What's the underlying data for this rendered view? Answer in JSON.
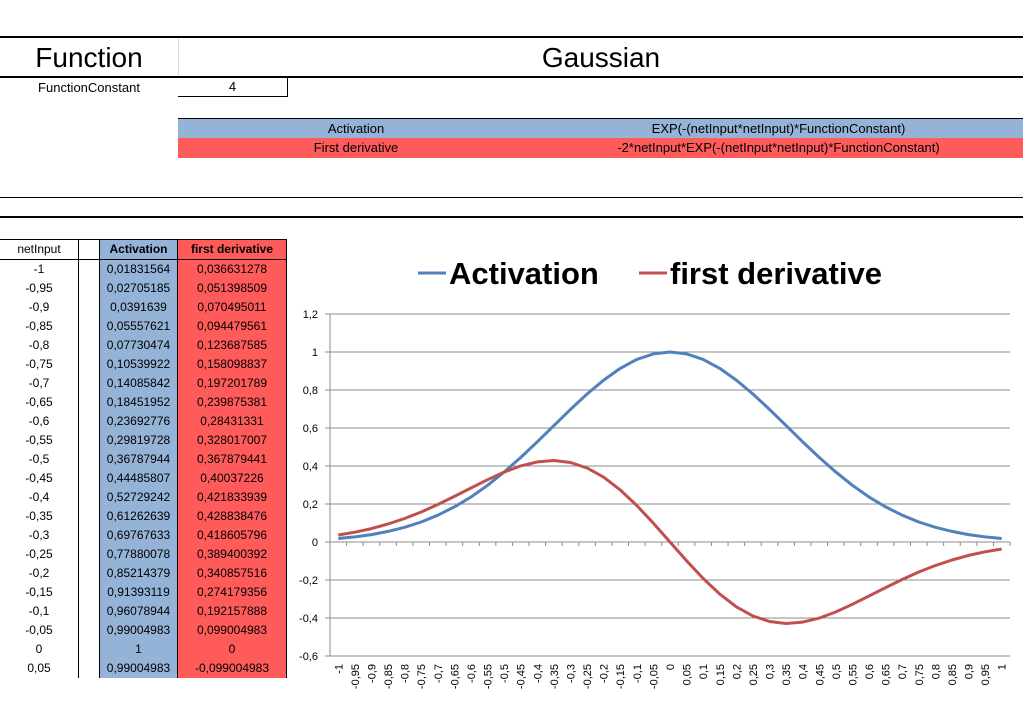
{
  "header": {
    "function_label": "Function",
    "function_value": "Gaussian",
    "constant_label": "FunctionConstant",
    "constant_value": "4"
  },
  "formulas": [
    {
      "name": "Activation",
      "expr": "EXP(-(netInput*netInput)*FunctionConstant)",
      "color": "#95b3d7"
    },
    {
      "name": "First derivative",
      "expr": "-2*netInput*EXP(-(netInput*netInput)*FunctionConstant)",
      "color": "#ff5b5b"
    }
  ],
  "table": {
    "headers": [
      "netInput",
      "Activation",
      "first derivative"
    ],
    "rows": [
      [
        "-1",
        "0,01831564",
        "0,036631278"
      ],
      [
        "-0,95",
        "0,02705185",
        "0,051398509"
      ],
      [
        "-0,9",
        "0,0391639",
        "0,070495011"
      ],
      [
        "-0,85",
        "0,05557621",
        "0,094479561"
      ],
      [
        "-0,8",
        "0,07730474",
        "0,123687585"
      ],
      [
        "-0,75",
        "0,10539922",
        "0,158098837"
      ],
      [
        "-0,7",
        "0,14085842",
        "0,197201789"
      ],
      [
        "-0,65",
        "0,18451952",
        "0,239875381"
      ],
      [
        "-0,6",
        "0,23692776",
        "0,28431331"
      ],
      [
        "-0,55",
        "0,29819728",
        "0,328017007"
      ],
      [
        "-0,5",
        "0,36787944",
        "0,367879441"
      ],
      [
        "-0,45",
        "0,44485807",
        "0,40037226"
      ],
      [
        "-0,4",
        "0,52729242",
        "0,421833939"
      ],
      [
        "-0,35",
        "0,61262639",
        "0,428838476"
      ],
      [
        "-0,3",
        "0,69767633",
        "0,418605796"
      ],
      [
        "-0,25",
        "0,77880078",
        "0,389400392"
      ],
      [
        "-0,2",
        "0,85214379",
        "0,340857516"
      ],
      [
        "-0,15",
        "0,91393119",
        "0,274179356"
      ],
      [
        "-0,1",
        "0,96078944",
        "0,192157888"
      ],
      [
        "-0,05",
        "0,99004983",
        "0,099004983"
      ],
      [
        "0",
        "1",
        "0"
      ],
      [
        "0,05",
        "0,99004983",
        "-0,099004983"
      ]
    ]
  },
  "chart_data": {
    "type": "line",
    "title": "",
    "xlabel": "",
    "ylabel": "",
    "legend_position": "top",
    "ylim": [
      -0.6,
      1.2
    ],
    "y_ticks": [
      "1,2",
      "1",
      "0,8",
      "0,6",
      "0,4",
      "0,2",
      "0",
      "-0,2",
      "-0,4",
      "-0,6"
    ],
    "y_tick_values": [
      1.2,
      1.0,
      0.8,
      0.6,
      0.4,
      0.2,
      0.0,
      -0.2,
      -0.4,
      -0.6
    ],
    "x": [
      "-1",
      "-0,95",
      "-0,9",
      "-0,85",
      "-0,8",
      "-0,75",
      "-0,7",
      "-0,65",
      "-0,6",
      "-0,55",
      "-0,5",
      "-0,45",
      "-0,4",
      "-0,35",
      "-0,3",
      "-0,25",
      "-0,2",
      "-0,15",
      "-0,1",
      "-0,05",
      "0",
      "0,05",
      "0,1",
      "0,15",
      "0,2",
      "0,25",
      "0,3",
      "0,35",
      "0,4",
      "0,45",
      "0,5",
      "0,55",
      "0,6",
      "0,65",
      "0,7",
      "0,75",
      "0,8",
      "0,85",
      "0,9",
      "0,95",
      "1"
    ],
    "grid": true,
    "series": [
      {
        "name": "Activation",
        "color": "#4f81bd",
        "values": [
          0.0183,
          0.0271,
          0.0392,
          0.0556,
          0.0773,
          0.1054,
          0.1409,
          0.1845,
          0.2369,
          0.2982,
          0.3679,
          0.4449,
          0.5273,
          0.6126,
          0.6977,
          0.7788,
          0.8521,
          0.9139,
          0.9608,
          0.99,
          1.0,
          0.99,
          0.9608,
          0.9139,
          0.8521,
          0.7788,
          0.6977,
          0.6126,
          0.5273,
          0.4449,
          0.3679,
          0.2982,
          0.2369,
          0.1845,
          0.1409,
          0.1054,
          0.0773,
          0.0556,
          0.0392,
          0.0271,
          0.0183
        ]
      },
      {
        "name": "first derivative",
        "color": "#c0504d",
        "values": [
          0.0366,
          0.0514,
          0.0705,
          0.0945,
          0.1237,
          0.1581,
          0.1972,
          0.2399,
          0.2843,
          0.328,
          0.3679,
          0.4004,
          0.4218,
          0.4288,
          0.4186,
          0.3894,
          0.3409,
          0.2742,
          0.1922,
          0.099,
          0.0,
          -0.099,
          -0.1922,
          -0.2742,
          -0.3409,
          -0.3894,
          -0.4186,
          -0.4288,
          -0.4218,
          -0.4004,
          -0.3679,
          -0.328,
          -0.2843,
          -0.2399,
          -0.1972,
          -0.1581,
          -0.1237,
          -0.0945,
          -0.0705,
          -0.0514,
          -0.0366
        ]
      }
    ]
  }
}
